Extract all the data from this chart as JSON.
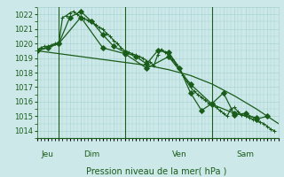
{
  "bg_color": "#cce8e8",
  "grid_color": "#aad4d4",
  "line_color": "#1a5c1a",
  "xlabel": "Pression niveau de la mer( hPa )",
  "ylim": [
    1013.5,
    1022.5
  ],
  "yticks": [
    1014,
    1015,
    1016,
    1017,
    1018,
    1019,
    1020,
    1021,
    1022
  ],
  "xlim": [
    0,
    66
  ],
  "day_labels": [
    {
      "label": "Jeu",
      "x": 3
    },
    {
      "label": "Dim",
      "x": 15
    },
    {
      "label": "Ven",
      "x": 39
    },
    {
      "label": "Sam",
      "x": 57
    }
  ],
  "day_vlines": [
    6,
    24,
    48
  ],
  "series": [
    {
      "x": [
        0,
        1,
        2,
        3,
        4,
        5,
        6,
        7,
        8,
        9,
        10,
        11,
        12,
        13,
        14,
        15,
        16,
        17,
        18,
        19,
        20,
        21,
        22,
        23,
        24,
        25,
        26,
        27,
        28,
        29,
        30,
        31,
        32,
        33,
        34,
        35,
        36,
        37,
        38,
        39,
        40,
        41,
        42,
        43,
        44,
        45,
        46,
        47,
        48,
        49,
        50,
        51,
        52,
        53,
        54,
        55,
        56,
        57,
        58,
        59,
        60,
        61,
        62,
        63,
        64,
        65
      ],
      "y": [
        1019.5,
        1019.7,
        1019.8,
        1019.8,
        1019.9,
        1020.0,
        1020.0,
        1021.8,
        1021.9,
        1022.1,
        1022.2,
        1022.0,
        1021.8,
        1021.7,
        1021.6,
        1021.5,
        1021.3,
        1021.1,
        1021.0,
        1020.7,
        1020.5,
        1020.2,
        1020.0,
        1019.7,
        1019.5,
        1019.4,
        1019.3,
        1019.2,
        1019.1,
        1019.0,
        1018.8,
        1018.7,
        1018.5,
        1019.2,
        1019.6,
        1019.4,
        1019.2,
        1018.9,
        1018.6,
        1018.3,
        1017.8,
        1017.4,
        1017.0,
        1016.7,
        1016.5,
        1016.3,
        1016.1,
        1015.9,
        1015.8,
        1015.6,
        1015.4,
        1015.2,
        1015.0,
        1015.5,
        1015.6,
        1015.3,
        1015.1,
        1015.0,
        1014.9,
        1014.8,
        1014.7,
        1014.6,
        1014.5,
        1014.3,
        1014.1,
        1014.0
      ],
      "marker": "+",
      "ms": 3,
      "lw": 0.9
    },
    {
      "x": [
        0,
        3,
        6,
        9,
        12,
        15,
        18,
        21,
        24,
        27,
        30,
        33,
        36,
        39,
        42,
        45,
        48,
        51,
        54,
        57,
        60,
        63
      ],
      "y": [
        1019.5,
        1019.7,
        1020.0,
        1021.8,
        1022.2,
        1021.5,
        1020.6,
        1019.8,
        1019.4,
        1019.1,
        1018.6,
        1019.5,
        1019.4,
        1018.3,
        1016.6,
        1015.4,
        1015.9,
        1016.6,
        1015.1,
        1015.2,
        1014.8,
        1015.0
      ],
      "marker": "D",
      "ms": 3,
      "lw": 0.9
    },
    {
      "x": [
        0,
        6,
        12,
        18,
        24,
        30,
        36,
        42,
        48,
        54,
        60
      ],
      "y": [
        1019.5,
        1020.0,
        1021.8,
        1019.7,
        1019.3,
        1018.3,
        1019.1,
        1017.2,
        1015.8,
        1015.2,
        1014.9
      ],
      "marker": "D",
      "ms": 3,
      "lw": 0.9
    },
    {
      "x": [
        0,
        6,
        12,
        18,
        24,
        30,
        36,
        42,
        48,
        54,
        60,
        66
      ],
      "y": [
        1019.5,
        1019.3,
        1019.1,
        1018.9,
        1018.7,
        1018.5,
        1018.2,
        1017.8,
        1017.2,
        1016.4,
        1015.5,
        1014.5
      ],
      "marker": null,
      "ms": 0,
      "lw": 0.9
    }
  ]
}
